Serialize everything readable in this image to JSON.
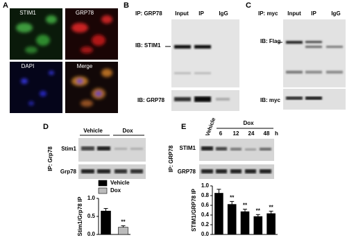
{
  "panels": {
    "A": {
      "label": "A",
      "images": [
        "STIM1",
        "GRP78",
        "DAPI",
        "Merge"
      ]
    },
    "B": {
      "label": "B",
      "ip": "IP: GRP78",
      "lanes": [
        "Input",
        "IP",
        "IgG"
      ],
      "blots": [
        "IB: STIM1",
        "IB: GRP78"
      ]
    },
    "C": {
      "label": "C",
      "ip": "IP: myc",
      "lanes": [
        "Input",
        "IP",
        "IgG"
      ],
      "blots": [
        "IB: Flag",
        "IB: myc"
      ]
    },
    "D": {
      "label": "D",
      "groups": [
        "Vehicle",
        "Dox"
      ],
      "ip": "IP: Grp78",
      "blots": [
        "Stim1",
        "Grp78"
      ]
    },
    "E": {
      "label": "E",
      "vehicle": "Vehicle",
      "dox": "Dox",
      "times": [
        "6",
        "12",
        "24",
        "48"
      ],
      "unit": "h",
      "ip": "IP: GRP78",
      "blots": [
        "STIM1",
        "GRP78"
      ]
    }
  },
  "chart_data": [
    {
      "type": "bar",
      "ylabel": "Stim1/Grp78 IP",
      "categories": [
        null
      ],
      "series": [
        {
          "name": "Vehicle",
          "color": "#000000",
          "values": [
            0.65
          ],
          "errors": [
            0.07
          ]
        },
        {
          "name": "Dox",
          "color": "#bbbbbb",
          "values": [
            0.2
          ],
          "errors": [
            0.04
          ]
        }
      ],
      "ylim": [
        0,
        1.0
      ],
      "yticks": [
        {
          "value": 0,
          "label": "0.0"
        },
        {
          "value": 0.5,
          "label": "0.5"
        },
        {
          "value": 1,
          "label": "1.0"
        }
      ],
      "annotations": [
        {
          "series": 1,
          "index": 0,
          "text": "**"
        }
      ],
      "legend": "top"
    },
    {
      "type": "bar",
      "ylabel": "STIM1/GRP78 IP",
      "categories": [
        null,
        null,
        null,
        null,
        null
      ],
      "values": [
        0.85,
        0.62,
        0.47,
        0.37,
        0.43
      ],
      "errors": [
        0.08,
        0.06,
        0.05,
        0.04,
        0.05
      ],
      "color": "#000000",
      "ylim": [
        0,
        1.0
      ],
      "yticks": [
        {
          "value": 0,
          "label": "0.0"
        },
        {
          "value": 0.2,
          "label": "0.2"
        },
        {
          "value": 0.4,
          "label": "0.4"
        },
        {
          "value": 0.6,
          "label": "0.6"
        },
        {
          "value": 0.8,
          "label": "0.8"
        },
        {
          "value": 1,
          "label": "1.0"
        }
      ],
      "annotations": [
        {
          "index": 1,
          "text": "**"
        },
        {
          "index": 2,
          "text": "**"
        },
        {
          "index": 3,
          "text": "**"
        },
        {
          "index": 4,
          "text": "**"
        }
      ]
    }
  ]
}
